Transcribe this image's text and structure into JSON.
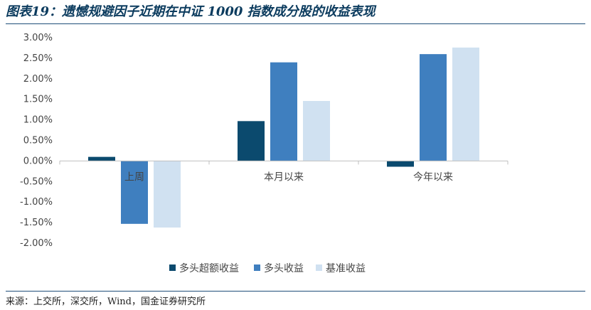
{
  "title": "图表19：遗憾规避因子近期在中证 1000 指数成分股的收益表现",
  "source": "来源：上交所，深交所，Wind，国金证券研究所",
  "chart_data": {
    "type": "bar",
    "categories": [
      "上周",
      "本月以来",
      "今年以来"
    ],
    "series": [
      {
        "name": "多头超额收益",
        "color": "#0b4a6e",
        "values": [
          0.1,
          0.97,
          -0.14
        ]
      },
      {
        "name": "多头收益",
        "color": "#3f7fbf",
        "values": [
          -1.53,
          2.4,
          2.6
        ]
      },
      {
        "name": "基准收益",
        "color": "#d0e1f1",
        "values": [
          -1.62,
          1.46,
          2.76
        ]
      }
    ],
    "yticks": [
      "3.00%",
      "2.50%",
      "2.00%",
      "1.50%",
      "1.00%",
      "0.50%",
      "0.00%",
      "-0.50%",
      "-1.00%",
      "-1.50%",
      "-2.00%"
    ],
    "ylim": [
      -2.0,
      3.0
    ],
    "legend_position": "bottom",
    "grid": false
  }
}
